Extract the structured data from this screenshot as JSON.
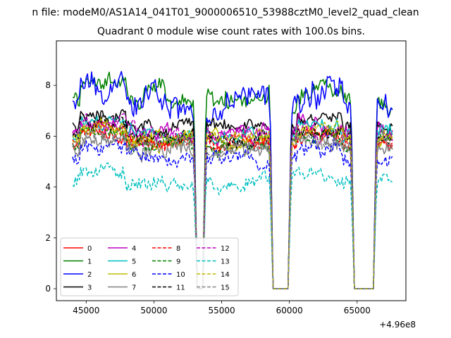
{
  "figure": {
    "suptitle": "n file: modeM0/AS1A14_041T01_9000006510_53988cztM0_level2_quad_clean",
    "title": "Quadrant 0 module wise count rates with 100.0s bins.",
    "offset_text": "+4.96e8"
  },
  "chart_data": {
    "type": "line",
    "title": "Quadrant 0 module wise count rates with 100.0s bins.",
    "suptitle": "n file: modeM0/AS1A14_041T01_9000006510_53988cztM0_level2_quad_clean",
    "x_offset": 496000000,
    "xlim": [
      42800,
      68600
    ],
    "ylim": [
      -0.47,
      9.75
    ],
    "x_ticks": [
      45000,
      50000,
      55000,
      60000,
      65000
    ],
    "x_tick_labels": [
      "45000",
      "50000",
      "55000",
      "60000",
      "65000"
    ],
    "y_ticks": [
      0,
      2,
      4,
      6,
      8
    ],
    "y_tick_labels": [
      "0",
      "2",
      "4",
      "6",
      "8"
    ],
    "grid": false,
    "legend_placement": "lower-left",
    "legend_columns": 4,
    "data_x_range": [
      44000,
      67600
    ],
    "bin_seconds": 100,
    "gaps": [
      [
        53200,
        53600
      ],
      [
        58800,
        59900
      ],
      [
        64800,
        66200
      ]
    ],
    "series": [
      {
        "name": "0",
        "color": "#ff0000",
        "dash": "solid",
        "level": 5.8,
        "noise": 0.3
      },
      {
        "name": "1",
        "color": "#008000",
        "dash": "solid",
        "level": 7.5,
        "noise": 0.38
      },
      {
        "name": "2",
        "color": "#0000ff",
        "dash": "solid",
        "level": 7.3,
        "noise": 0.55
      },
      {
        "name": "3",
        "color": "#000000",
        "dash": "solid",
        "level": 6.4,
        "noise": 0.28
      },
      {
        "name": "4",
        "color": "#bf00bf",
        "dash": "solid",
        "level": 6.0,
        "noise": 0.3
      },
      {
        "name": "5",
        "color": "#00bfbf",
        "dash": "solid",
        "level": 6.1,
        "noise": 0.3
      },
      {
        "name": "6",
        "color": "#bfbf00",
        "dash": "solid",
        "level": 5.9,
        "noise": 0.28
      },
      {
        "name": "7",
        "color": "#808080",
        "dash": "solid",
        "level": 5.5,
        "noise": 0.32
      },
      {
        "name": "8",
        "color": "#ff0000",
        "dash": "dashed",
        "level": 5.7,
        "noise": 0.3
      },
      {
        "name": "9",
        "color": "#008000",
        "dash": "dashed",
        "level": 5.8,
        "noise": 0.3
      },
      {
        "name": "10",
        "color": "#0000ff",
        "dash": "dashed",
        "level": 5.2,
        "noise": 0.32
      },
      {
        "name": "11",
        "color": "#000000",
        "dash": "dashed",
        "level": 6.0,
        "noise": 0.3
      },
      {
        "name": "12",
        "color": "#bf00bf",
        "dash": "dashed",
        "level": 6.1,
        "noise": 0.3
      },
      {
        "name": "13",
        "color": "#00bfbf",
        "dash": "dashed",
        "level": 4.2,
        "noise": 0.3
      },
      {
        "name": "14",
        "color": "#bfbf00",
        "dash": "dashed",
        "level": 5.9,
        "noise": 0.28
      },
      {
        "name": "15",
        "color": "#808080",
        "dash": "dashed",
        "level": 5.6,
        "noise": 0.3
      }
    ]
  }
}
